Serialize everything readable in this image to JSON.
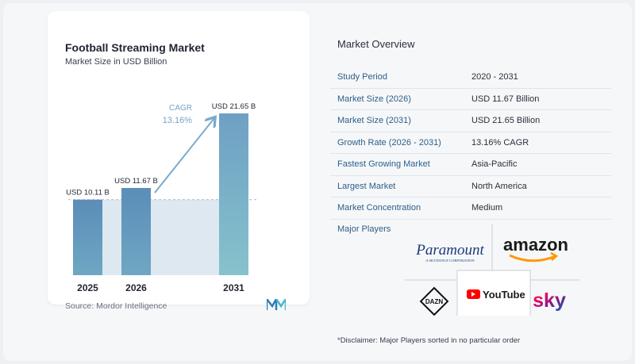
{
  "chart": {
    "title": "Football Streaming Market",
    "subtitle": "Market Size in USD Billion",
    "source": "Source:  Mordor Intelligence",
    "cagr_label": "CAGR",
    "cagr_value": "13.16%"
  },
  "chart_data": {
    "type": "bar",
    "title": "Football Streaming Market",
    "subtitle": "Market Size in USD Billion",
    "categories": [
      "2025",
      "2026",
      "2031"
    ],
    "values": [
      10.11,
      11.67,
      21.65
    ],
    "data_labels": [
      "USD 10.11 B",
      "USD 11.67 B",
      "USD 21.65 B"
    ],
    "cagr": "13.16%",
    "xlabel": "",
    "ylabel": "",
    "ylim": [
      0,
      21.65
    ],
    "grid": false,
    "bar_colors": [
      "#5b8db8",
      "#5b8db8",
      "#7ab0c8"
    ],
    "highlight_color": "#dde8f1"
  },
  "overview": {
    "title": "Market Overview",
    "rows": [
      {
        "label": "Study Period",
        "value": "2020 - 2031"
      },
      {
        "label": "Market Size (2026)",
        "value": "USD 11.67 Billion"
      },
      {
        "label": "Market Size (2031)",
        "value": "USD 21.65 Billion"
      },
      {
        "label": "Growth Rate (2026 - 2031)",
        "value": "13.16% CAGR"
      },
      {
        "label": "Fastest Growing Market",
        "value": "Asia-Pacific"
      },
      {
        "label": "Largest Market",
        "value": "North America"
      },
      {
        "label": "Market Concentration",
        "value": "Medium"
      }
    ]
  },
  "players": {
    "label": "Major Players",
    "logos": {
      "paramount": "Paramount",
      "paramount_tagline": "A SKYDANCE CORPORATION",
      "amazon": "amazon",
      "dazn": "DAZN",
      "youtube": "YouTube",
      "sky": "sky"
    }
  },
  "disclaimer": "*Disclaimer: Major Players sorted in no particular order",
  "colors": {
    "label_blue": "#2b5f8a",
    "bar_dark": "#5b8db8",
    "bar_light": "#7ab0c8",
    "amazon_orange": "#ff9900",
    "youtube_red": "#ff0000",
    "sky_gradient": [
      "#ff4e00",
      "#e3006d",
      "#5a2d91",
      "#0072c9"
    ]
  }
}
